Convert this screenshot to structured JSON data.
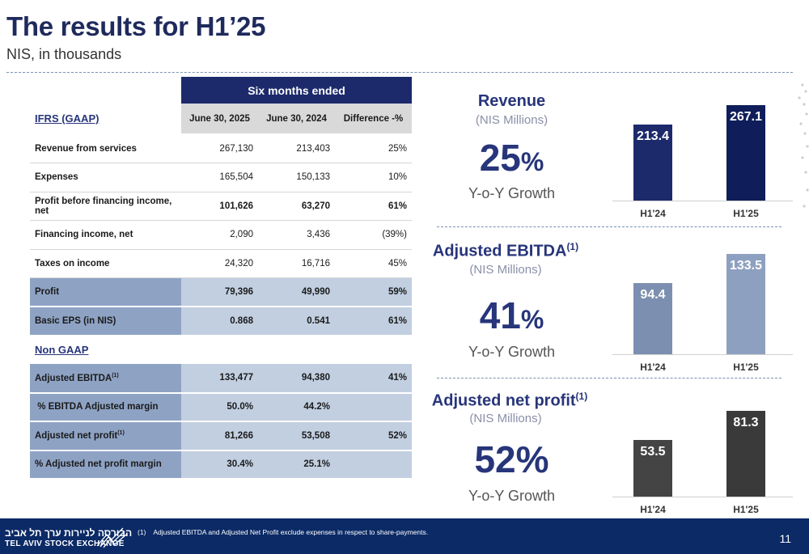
{
  "header": {
    "title": "The results for H1’25",
    "subtitle": "NIS, in thousands"
  },
  "table": {
    "span_header": "Six months ended",
    "section_gaap": "IFRS (GAAP)",
    "columns": [
      "June 30, 2025",
      "June 30, 2024",
      "Difference -%"
    ],
    "gaap_rows": [
      {
        "label": "Revenue from services",
        "v1": "267,130",
        "v2": "213,403",
        "v3": "25%"
      },
      {
        "label": "Expenses",
        "v1": "165,504",
        "v2": "150,133",
        "v3": "10%"
      },
      {
        "label": "Profit before financing income, net",
        "v1": "101,626",
        "v2": "63,270",
        "v3": "61%"
      },
      {
        "label": "Financing income, net",
        "v1": "2,090",
        "v2": "3,436",
        "v3": "(39%)"
      },
      {
        "label": "Taxes on income",
        "v1": "24,320",
        "v2": "16,716",
        "v3": "45%"
      },
      {
        "label": "Profit",
        "v1": "79,396",
        "v2": "49,990",
        "v3": "59%"
      },
      {
        "label": "Basic EPS (in NIS)",
        "v1": "0.868",
        "v2": "0.541",
        "v3": "61%"
      }
    ],
    "section_nongaap": "Non GAAP",
    "nongaap_rows": [
      {
        "label": "Adjusted EBITDA",
        "sup": "(1)",
        "v1": "133,477",
        "v2": "94,380",
        "v3": "41%"
      },
      {
        "label": " % EBITDA Adjusted margin",
        "sup": "",
        "v1": "50.0%",
        "v2": "44.2%",
        "v3": ""
      },
      {
        "label": "Adjusted net profit",
        "sup": "(1)",
        "v1": "81,266",
        "v2": "53,508",
        "v3": "52%"
      },
      {
        "label": "% Adjusted net profit margin",
        "sup": "",
        "v1": "30.4%",
        "v2": "25.1%",
        "v3": ""
      }
    ]
  },
  "metrics": [
    {
      "title": "Revenue",
      "title_sup": "",
      "unit": "(NIS Millions)",
      "growth_num": "25",
      "growth_pct": "%",
      "growth_label": "Y-o-Y Growth",
      "color_prev": "#1c2a6b",
      "color_curr": "#0f1e5a"
    },
    {
      "title": "Adjusted EBITDA",
      "title_sup": "(1)",
      "unit": "(NIS Millions)",
      "growth_num": "41",
      "growth_pct": "%",
      "growth_label": "Y-o-Y Growth",
      "color_prev": "#7d8fb0",
      "color_curr": "#8ea0c0"
    },
    {
      "title": "Adjusted net profit",
      "title_sup": "(1)",
      "unit": "(NIS Millions)",
      "growth_num": "52",
      "growth_pct": "%",
      "growth_label": "Y-o-Y Growth",
      "color_prev": "#444444",
      "color_curr": "#3a3a3a"
    }
  ],
  "chart_data": [
    {
      "type": "bar",
      "categories": [
        "H1'24",
        "H1'25"
      ],
      "values": [
        213.4,
        267.1
      ]
    },
    {
      "type": "bar",
      "categories": [
        "H1'24",
        "H1'25"
      ],
      "values": [
        94.4,
        133.5
      ]
    },
    {
      "type": "bar",
      "categories": [
        "H1'24",
        "H1'25"
      ],
      "values": [
        53.5,
        81.3
      ]
    }
  ],
  "footer": {
    "logo_hebrew": "הבורסה לניירות ערך תל אביב",
    "logo_english": "TEL AVIV STOCK EXCHANGE",
    "footnote": "(1)    Adjusted EBITDA and Adjusted Net Profit exclude expenses in respect to share-payments.",
    "page_number": "11"
  }
}
